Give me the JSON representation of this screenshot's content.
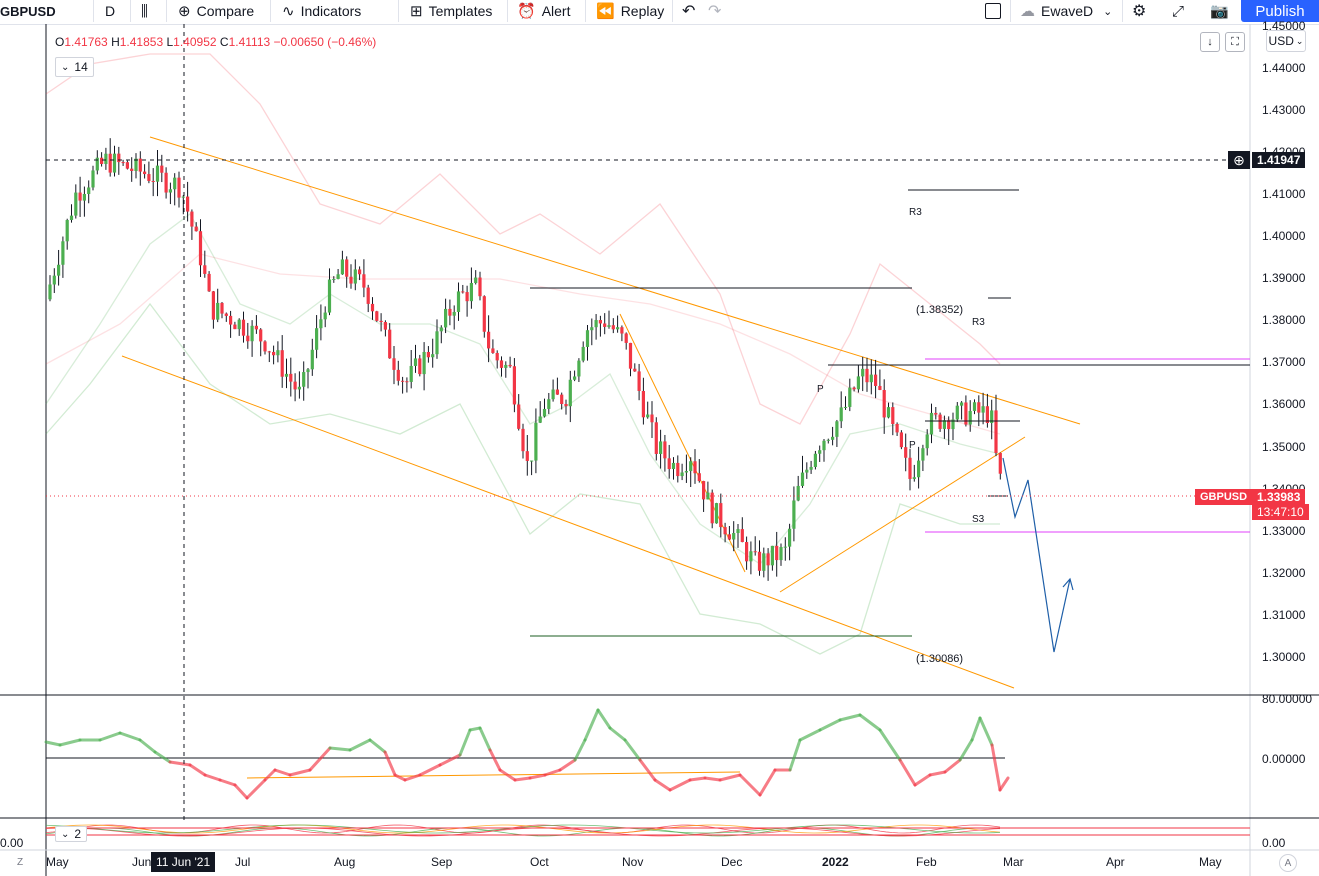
{
  "toolbar": {
    "symbol": "GBPUSD",
    "interval": "D",
    "compare": "Compare",
    "indicators": "Indicators",
    "templates": "Templates",
    "alert": "Alert",
    "replay": "Replay",
    "layout_name": "EwaveD",
    "publish": "Publish"
  },
  "legend": {
    "o_label": "O",
    "o": "1.41763",
    "h_label": "H",
    "h": "1.41853",
    "l_label": "L",
    "l": "1.40952",
    "c_label": "C",
    "c": "1.41113",
    "change": "−0.00650 (−0.46%)"
  },
  "study_toggle_main": "14",
  "study_toggle_lower": "2",
  "currency": "USD",
  "crosshair_price": "1.41947",
  "crosshair_date": "11 Jun '21",
  "symbol_tag": "GBPUSD",
  "last_price": "1.33983",
  "countdown": "13:47:10",
  "annotations": {
    "r3_upper": "R3",
    "r3_lower": "R3",
    "pivot": "P",
    "pivot_lower": "P",
    "s3": "S3",
    "high_level": "(1.38352)",
    "low_level": "(1.30086)"
  },
  "price_ticks": [
    "1.45000",
    "1.44000",
    "1.43000",
    "1.42000",
    "1.41000",
    "1.40000",
    "1.39000",
    "1.38000",
    "1.37000",
    "1.36000",
    "1.35000",
    "1.34000",
    "1.33000",
    "1.32000",
    "1.31000",
    "1.30000"
  ],
  "osc_ticks": [
    "80.00000",
    "0.00000"
  ],
  "lower_ticks": [
    "0.00",
    "0.00"
  ],
  "time_ticks": [
    "May",
    "Jun",
    "Jul",
    "Aug",
    "Sep",
    "Oct",
    "Nov",
    "Dec",
    "2022",
    "Feb",
    "Mar",
    "Apr",
    "May"
  ],
  "corner_left": "Z",
  "corner_right": "A",
  "colors": {
    "up": "#26a69a",
    "up_candle": "#4caf50",
    "down": "#f23645",
    "channel": "#ff9800",
    "projection": "#1f5fa8",
    "magenta": "#e040fb",
    "accent": "#2962ff"
  },
  "icons": [
    "candles-icon",
    "compare-icon",
    "indicators-icon",
    "templates-icon",
    "alert-icon",
    "replay-icon",
    "undo-icon",
    "redo-icon",
    "square-icon",
    "cloud-icon",
    "gear-icon",
    "fullscreen-icon",
    "camera-icon"
  ]
}
